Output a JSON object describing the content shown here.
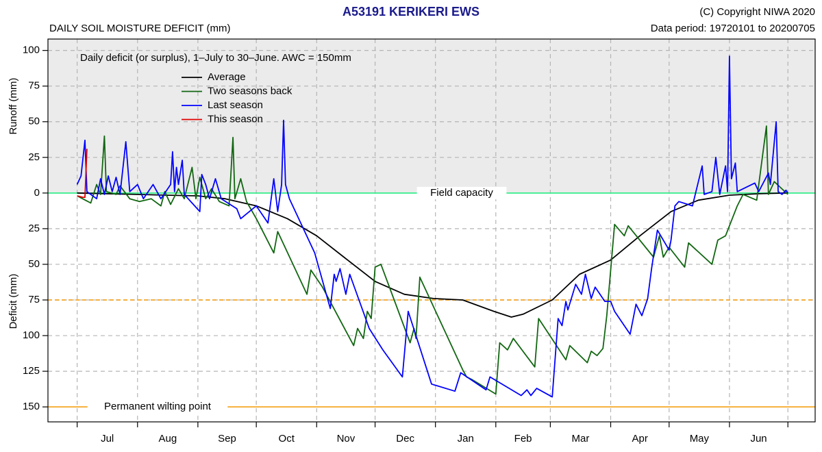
{
  "chart_data": {
    "type": "line",
    "title": "A53191  KERIKERI EWS",
    "subtitle": "DAILY SOIL MOISTURE DEFICIT (mm)",
    "copyright": "(C) Copyright NIWA  2020",
    "data_period": "Data period:  19720101  to  20200705",
    "annotation": "Daily deficit (or surplus), 1–July to 30–June.  AWC = 150mm",
    "y_label_upper": "Runoff (mm)",
    "y_label_lower": "Deficit (mm)",
    "categories": [
      "Jul",
      "Aug",
      "Sep",
      "Oct",
      "Nov",
      "Dec",
      "Jan",
      "Feb",
      "Mar",
      "Apr",
      "May",
      "Jun"
    ],
    "xlim": [
      -15,
      379
    ],
    "xticks": [
      0,
      31,
      62,
      92,
      123,
      153,
      184,
      215,
      243,
      274,
      304,
      335,
      365
    ],
    "ylim": [
      -160.5,
      108
    ],
    "yticks": [
      100,
      75,
      50,
      25,
      0,
      {
        "value": -25,
        "label": "25"
      },
      {
        "value": -50,
        "label": "50"
      },
      {
        "value": -75,
        "label": "75"
      },
      {
        "value": -100,
        "label": "100"
      },
      {
        "value": -125,
        "label": "125"
      },
      {
        "value": -150,
        "label": "150"
      }
    ],
    "grid": true,
    "legend": "upper left",
    "reference_lines": [
      {
        "value": 0,
        "label": "Field capacity",
        "color": "#33ee88",
        "style": "solid"
      },
      {
        "value": -75,
        "color": "#f5a623",
        "style": "dashed"
      },
      {
        "value": -150,
        "label": "Permanent wilting point",
        "color": "#f5a623",
        "style": "solid"
      }
    ],
    "series": [
      {
        "name": "Average",
        "color": "#000000",
        "x": [
          0,
          15,
          31,
          46,
          62,
          76,
          92,
          108,
          123,
          137,
          153,
          168,
          183,
          198,
          214,
          223,
          229,
          244,
          258,
          274,
          289,
          305,
          319,
          335,
          350,
          365
        ],
        "values": [
          0,
          -0.5,
          -1,
          -1.5,
          -2,
          -4,
          -9,
          -18,
          -30,
          -45,
          -62,
          -71,
          -74,
          -75,
          -83,
          -87,
          -85,
          -75,
          -57,
          -47,
          -30,
          -13,
          -5,
          -1.5,
          -0.5,
          0
        ]
      },
      {
        "name": "Two seasons back",
        "color": "#116611",
        "x": [
          0,
          7,
          10,
          12,
          14,
          15,
          20,
          22,
          27,
          32,
          38,
          43,
          45,
          48,
          52,
          55,
          59,
          61,
          63,
          66,
          69,
          73,
          78,
          80,
          81,
          84,
          87,
          92,
          101,
          103,
          118,
          120,
          124,
          126,
          142,
          144,
          147,
          149,
          151,
          153,
          156,
          171,
          173,
          174,
          176,
          198,
          200,
          203,
          215,
          217,
          221,
          224,
          235,
          237,
          251,
          253,
          262,
          264,
          267,
          270,
          272,
          276,
          281,
          283,
          296,
          299,
          301,
          304,
          312,
          314,
          326,
          329,
          333,
          335,
          339,
          342,
          349,
          354,
          355,
          358,
          365
        ],
        "values": [
          -2,
          -7,
          6,
          -1,
          40,
          1,
          -1,
          5,
          -4,
          -6,
          -4,
          -9,
          1,
          -8,
          3,
          -4,
          18,
          -4,
          11,
          -4,
          3,
          -6,
          -9,
          39,
          -4,
          10,
          -6,
          -18,
          -42,
          -27,
          -71,
          -54,
          -62,
          -66,
          -107,
          -95,
          -102,
          -83,
          -88,
          -52,
          -50,
          -105,
          -95,
          -102,
          -59,
          -124,
          -129,
          -131,
          -141,
          -105,
          -110,
          -102,
          -122,
          -88,
          -117,
          -107,
          -119,
          -111,
          -114,
          -109,
          -86,
          -22,
          -30,
          -23,
          -45,
          -30,
          -45,
          -38,
          -52,
          -35,
          -50,
          -33,
          -30,
          -23,
          -9,
          -1,
          -5,
          47,
          -1,
          8,
          -1
        ]
      },
      {
        "name": "Last season",
        "color": "#0000ff",
        "x": [
          0,
          2,
          4,
          5,
          10,
          12,
          14,
          16,
          18,
          20,
          22,
          25,
          27,
          31,
          34,
          39,
          43,
          48,
          49,
          50,
          51,
          52,
          54,
          55,
          63,
          64,
          66,
          68,
          71,
          74,
          82,
          84,
          92,
          98,
          101,
          103,
          105,
          106,
          107,
          109,
          122,
          130,
          132,
          133,
          135,
          138,
          140,
          150,
          157,
          167,
          170,
          182,
          194,
          197,
          210,
          212,
          228,
          231,
          233,
          236,
          244,
          247,
          249,
          251,
          252,
          256,
          259,
          261,
          264,
          266,
          271,
          274,
          276,
          284,
          287,
          290,
          293,
          295,
          298,
          304,
          305,
          307,
          309,
          316,
          321,
          322,
          326,
          328,
          330,
          333,
          334,
          335,
          336,
          338,
          339,
          348,
          350,
          355,
          356,
          359,
          360,
          362,
          364,
          365
        ],
        "values": [
          6,
          12,
          37,
          1,
          -4,
          10,
          -1,
          12,
          1,
          11,
          -1,
          36,
          1,
          6,
          -4,
          6,
          -4,
          6,
          29,
          1,
          18,
          6,
          23,
          -1,
          -13,
          13,
          6,
          -4,
          10,
          -4,
          -11,
          -18,
          -9,
          -21,
          10,
          -13,
          6,
          51,
          6,
          -4,
          -42,
          -81,
          -57,
          -62,
          -53,
          -71,
          -57,
          -95,
          -110,
          -129,
          -83,
          -134,
          -139,
          -126,
          -138,
          -129,
          -142,
          -138,
          -142,
          -137,
          -143,
          -88,
          -93,
          -76,
          -82,
          -64,
          -71,
          -57,
          -74,
          -66,
          -76,
          -76,
          -83,
          -99,
          -78,
          -86,
          -74,
          -53,
          -26,
          -40,
          -33,
          -9,
          -6,
          -9,
          19,
          -1,
          1,
          25,
          -1,
          19,
          1,
          96,
          10,
          21,
          1,
          7,
          1,
          14,
          6,
          50,
          1,
          -1,
          2,
          0
        ]
      },
      {
        "name": "This season",
        "color": "#e00000",
        "x": [
          0,
          3,
          4,
          5
        ],
        "values": [
          -2,
          -3,
          -3,
          31
        ]
      }
    ]
  }
}
